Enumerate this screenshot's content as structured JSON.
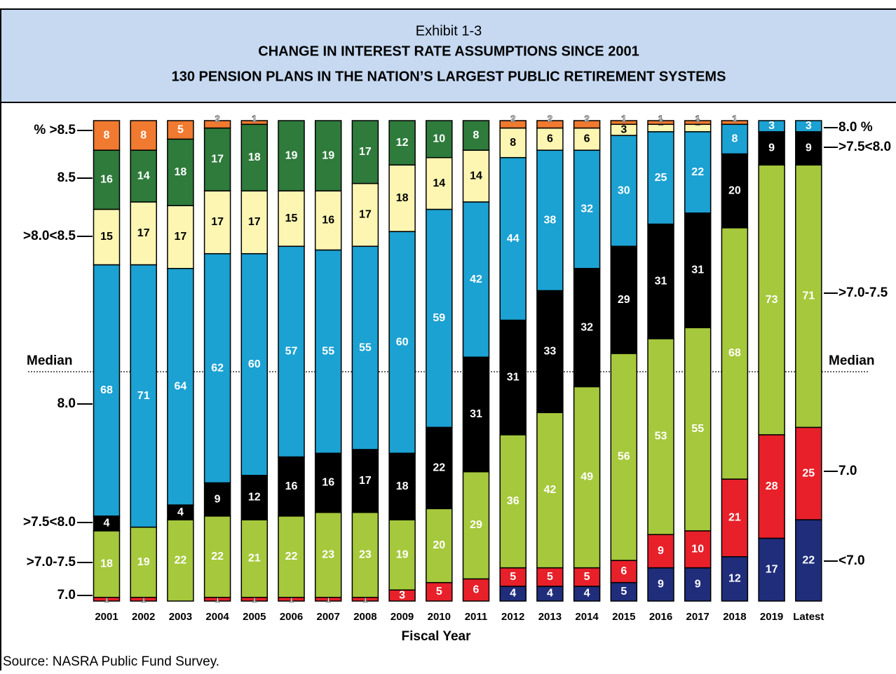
{
  "chart_data": {
    "type": "stacked_bar",
    "title": "Exhibit 1-3",
    "subtitle": [
      "CHANGE IN INTEREST RATE ASSUMPTIONS SINCE 2001",
      "130 PENSION PLANS IN THE NATION’S LARGEST PUBLIC RETIREMENT SYSTEMS"
    ],
    "x_label": "Fiscal Year",
    "source": "Source: NASRA Public Fund Survey.",
    "left_labels": [
      "% >8.5",
      "8.5",
      ">8.0<8.5",
      "Median",
      "8.0",
      ">7.5<8.0",
      ">7.0-7.5",
      "7.0"
    ],
    "right_labels": [
      "8.0 %",
      ">7.5<8.0",
      ">7.0-7.5",
      "Median",
      "7.0",
      "<7.0"
    ],
    "categories": [
      "2001",
      "2002",
      "2003",
      "2004",
      "2005",
      "2006",
      "2007",
      "2008",
      "2009",
      "2010",
      "2011",
      "2012",
      "2013",
      "2014",
      "2015",
      "2016",
      "2017",
      "2018",
      "2019",
      "Latest"
    ],
    "ylim": [
      0,
      130
    ],
    "series": [
      {
        "color": "#1f2d7b",
        "values": [
          0,
          0,
          0,
          0,
          0,
          0,
          0,
          0,
          0,
          0,
          0,
          4,
          4,
          4,
          5,
          9,
          9,
          12,
          17,
          22
        ]
      },
      {
        "color": "#e8202a",
        "values": [
          1,
          1,
          0,
          1,
          1,
          1,
          1,
          1,
          3,
          5,
          6,
          5,
          5,
          5,
          6,
          9,
          10,
          21,
          28,
          25
        ]
      },
      {
        "color": "#a6c83c",
        "values": [
          18,
          19,
          22,
          22,
          21,
          22,
          23,
          23,
          19,
          20,
          29,
          36,
          42,
          49,
          56,
          53,
          55,
          68,
          73,
          71
        ]
      },
      {
        "color": "#000000",
        "values": [
          4,
          0,
          4,
          9,
          12,
          16,
          16,
          17,
          18,
          22,
          31,
          31,
          33,
          32,
          29,
          31,
          31,
          20,
          9,
          9
        ]
      },
      {
        "color": "#1ba1d2",
        "values": [
          68,
          71,
          64,
          62,
          60,
          57,
          55,
          55,
          60,
          59,
          42,
          44,
          38,
          32,
          30,
          25,
          22,
          8,
          3,
          3
        ]
      },
      {
        "color": "#fdf6b2",
        "values": [
          15,
          17,
          17,
          17,
          17,
          15,
          16,
          17,
          18,
          14,
          14,
          8,
          6,
          6,
          3,
          2,
          2,
          0,
          0,
          0
        ]
      },
      {
        "color": "#2e7b3b",
        "values": [
          16,
          14,
          18,
          17,
          18,
          19,
          19,
          17,
          12,
          10,
          8,
          0,
          0,
          0,
          0,
          0,
          0,
          0,
          0,
          0
        ]
      },
      {
        "color": "#f07a30",
        "values": [
          8,
          8,
          5,
          2,
          1,
          0,
          0,
          0,
          0,
          0,
          0,
          2,
          2,
          2,
          1,
          1,
          1,
          1,
          0,
          0
        ]
      }
    ]
  }
}
